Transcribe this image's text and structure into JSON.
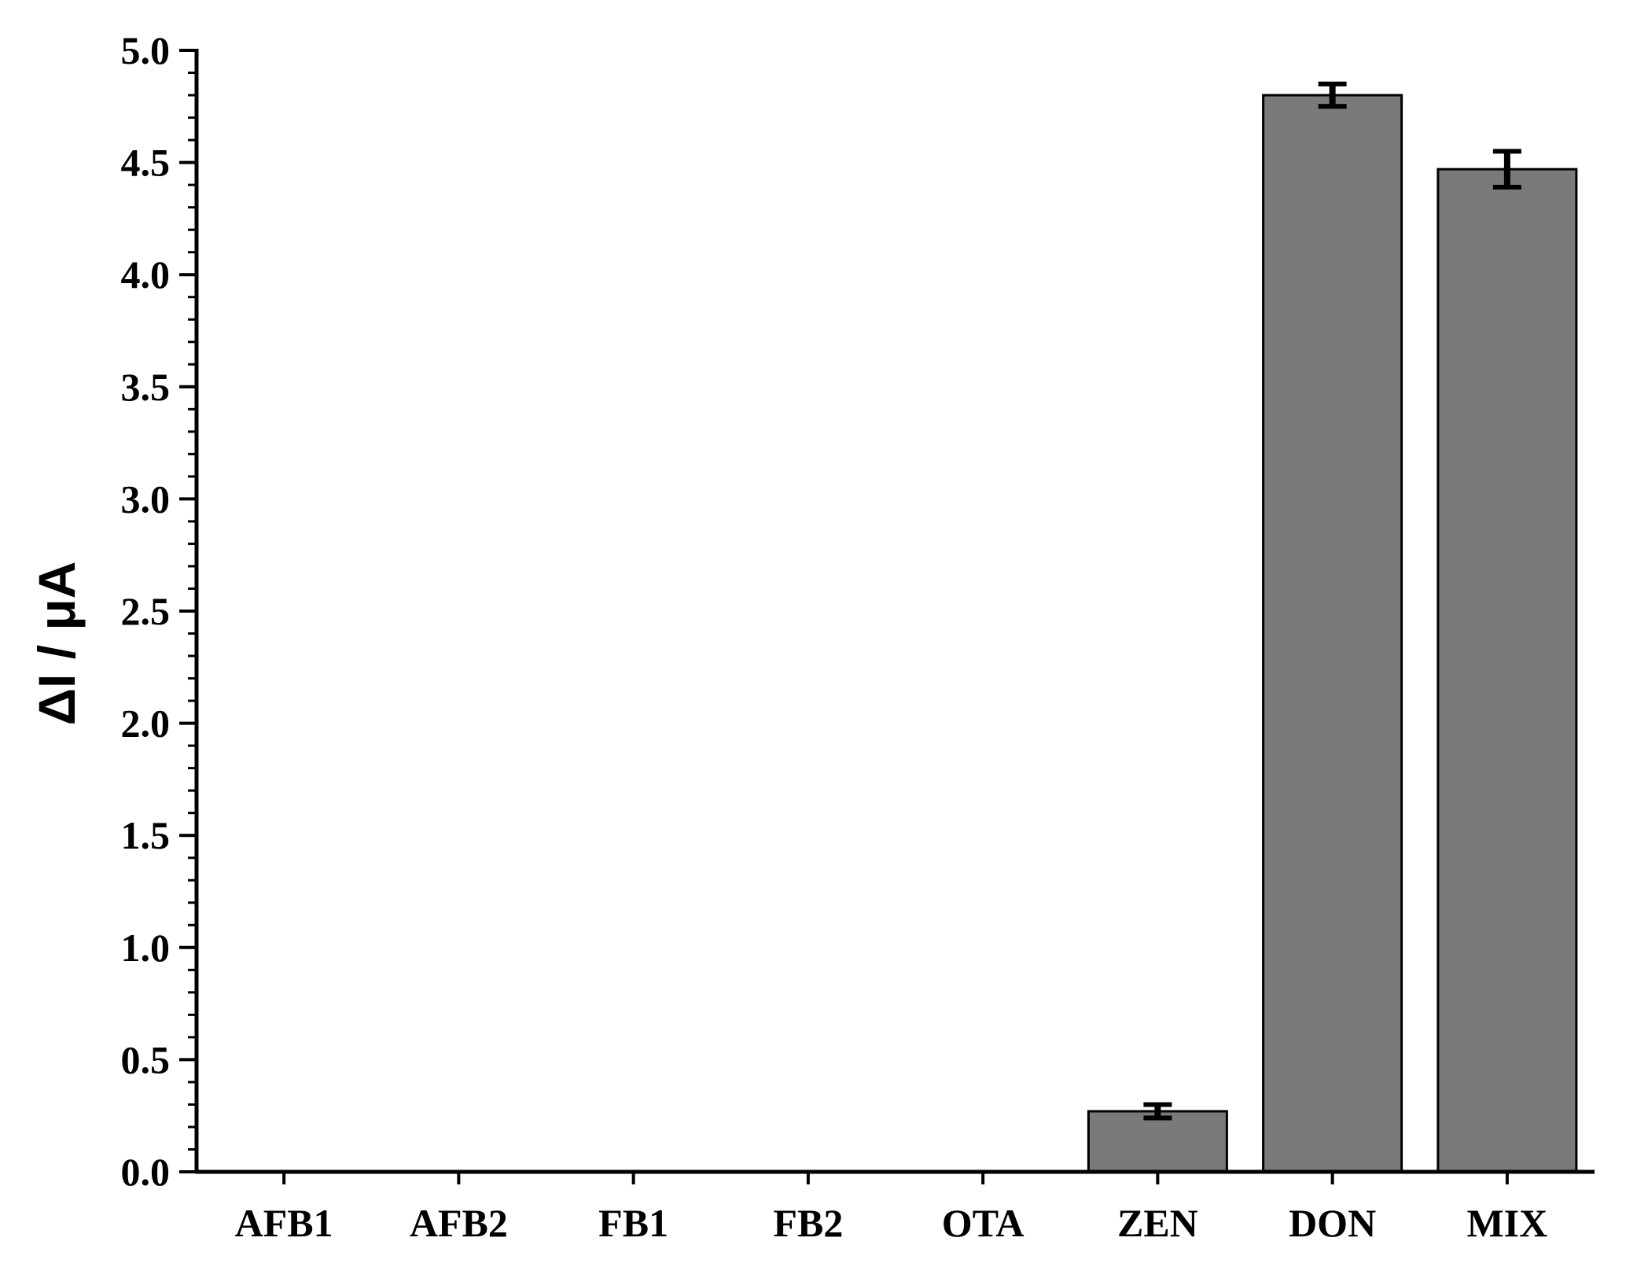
{
  "chart_data": {
    "type": "bar",
    "title": "",
    "xlabel": "",
    "ylabel": "ΔI / μA",
    "ylim": [
      0,
      5
    ],
    "y_ticks": [
      "0.0",
      "0.5",
      "1.0",
      "1.5",
      "2.0",
      "2.5",
      "3.0",
      "3.5",
      "4.0",
      "4.5",
      "5.0"
    ],
    "categories": [
      "AFB1",
      "AFB2",
      "FB1",
      "FB2",
      "OTA",
      "ZEN",
      "DON",
      "MIX"
    ],
    "values": [
      0,
      0,
      0,
      0,
      0,
      0.27,
      4.8,
      4.47
    ],
    "errors": [
      0,
      0,
      0,
      0,
      0,
      0.03,
      0.05,
      0.08
    ],
    "grid": false,
    "legend": "none",
    "colors": {
      "bar_fill": "#7a7a7a",
      "bar_stroke": "#000000",
      "axis": "#000000"
    }
  }
}
